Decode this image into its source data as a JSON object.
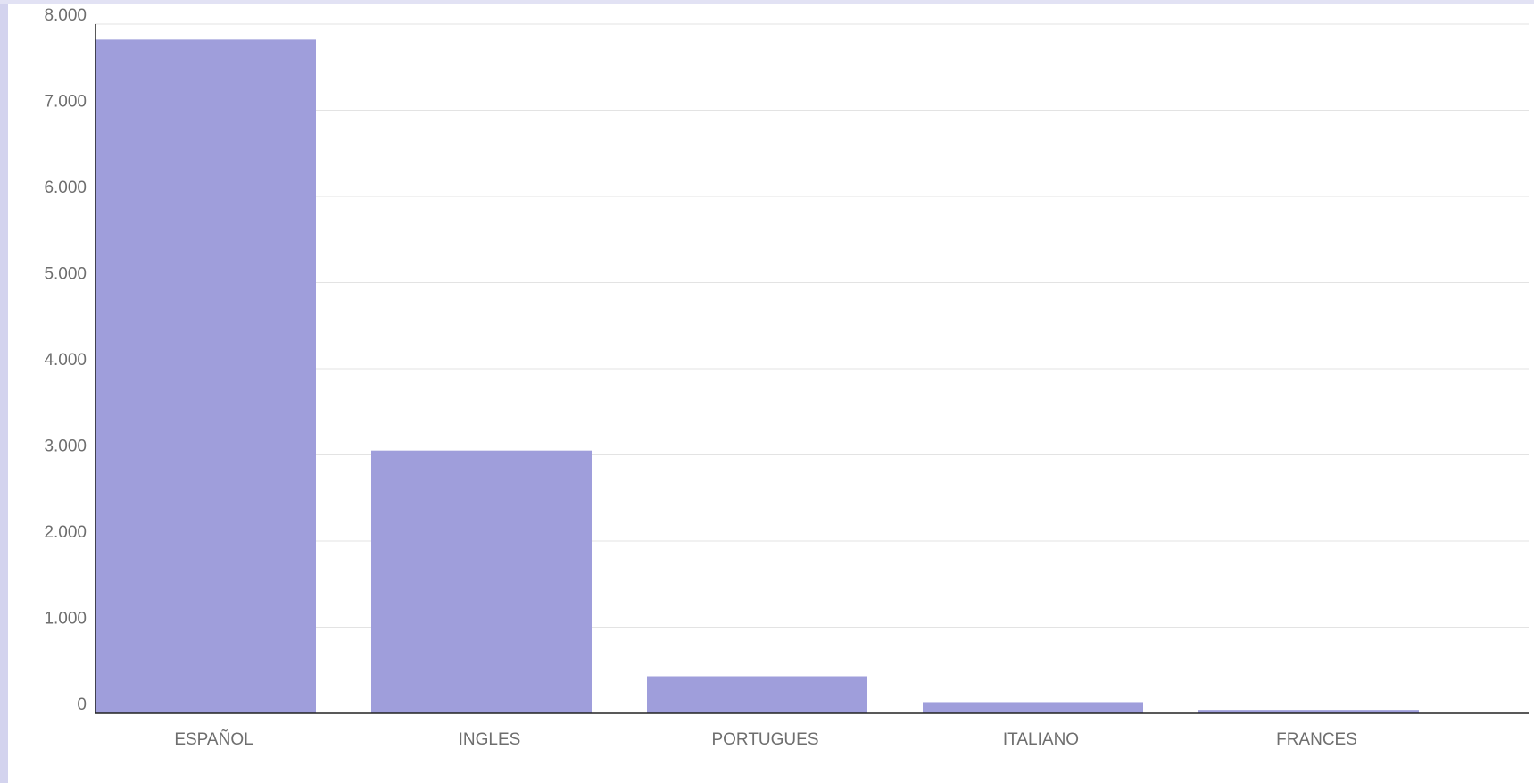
{
  "colors": {
    "bar": "#9f9edb",
    "gridline": "#e3e3e3",
    "axis": "#222222",
    "text": "#6e6e6e",
    "frame_accent": "#d3d3ee"
  },
  "chart_data": {
    "type": "bar",
    "title": "",
    "xlabel": "",
    "ylabel": "",
    "categories": [
      "ESPAÑOL",
      "INGLES",
      "PORTUGUES",
      "ITALIANO",
      "FRANCES"
    ],
    "values": [
      7820,
      3050,
      430,
      130,
      40
    ],
    "ylim": [
      0,
      8000
    ],
    "yticks": [
      0,
      1000,
      2000,
      3000,
      4000,
      5000,
      6000,
      7000,
      8000
    ],
    "ytick_labels": [
      "0",
      "1.000",
      "2.000",
      "3.000",
      "4.000",
      "5.000",
      "6.000",
      "7.000",
      "8.000"
    ],
    "grid": true,
    "legend": "none"
  }
}
